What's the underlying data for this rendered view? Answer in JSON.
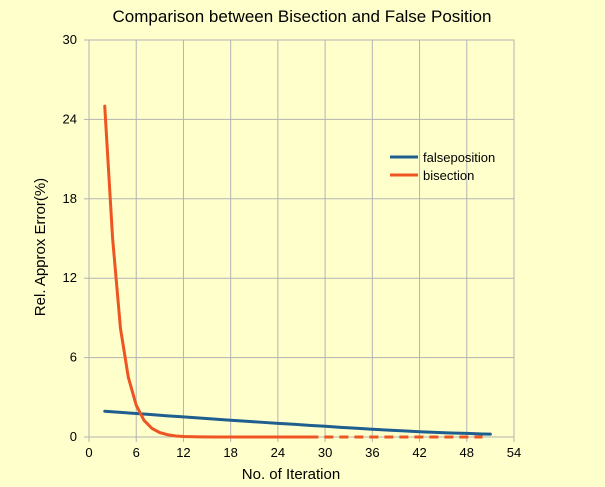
{
  "chart_data": {
    "type": "line",
    "title": "Comparison between Bisection and False Position",
    "xlabel": "No. of Iteration",
    "ylabel": "Rel. Approx Error(%)",
    "xlim": [
      0,
      54
    ],
    "ylim": [
      0,
      30
    ],
    "x_ticks": [
      0,
      6,
      12,
      18,
      24,
      30,
      36,
      42,
      48,
      54
    ],
    "y_ticks": [
      0,
      6,
      12,
      18,
      24,
      30
    ],
    "grid": true,
    "legend_position": "right",
    "series": [
      {
        "name": "falseposition",
        "color": "#1f5f8f",
        "x": [
          2,
          4,
          6,
          8,
          10,
          12,
          14,
          16,
          18,
          20,
          22,
          24,
          26,
          28,
          30,
          32,
          34,
          36,
          38,
          40,
          42,
          44,
          46,
          48,
          50,
          51
        ],
        "y": [
          1.95,
          1.86,
          1.78,
          1.69,
          1.6,
          1.52,
          1.44,
          1.35,
          1.27,
          1.19,
          1.11,
          1.03,
          0.96,
          0.88,
          0.81,
          0.73,
          0.66,
          0.59,
          0.52,
          0.46,
          0.4,
          0.35,
          0.3,
          0.27,
          0.23,
          0.22
        ]
      },
      {
        "name": "bisection",
        "color": "#ee5522",
        "x": [
          2,
          3,
          4,
          5,
          6,
          7,
          8,
          9,
          10,
          11,
          12,
          14,
          16,
          20,
          24,
          28,
          32,
          36,
          40,
          44,
          48,
          50
        ],
        "y": [
          25,
          15,
          8.2,
          4.5,
          2.4,
          1.25,
          0.65,
          0.33,
          0.17,
          0.08,
          0.04,
          0.01,
          0.0,
          0.0,
          0.0,
          0.0,
          0.0,
          0.0,
          0.0,
          0.0,
          0.0,
          0.0
        ],
        "dashed_from_x": 28
      }
    ]
  }
}
